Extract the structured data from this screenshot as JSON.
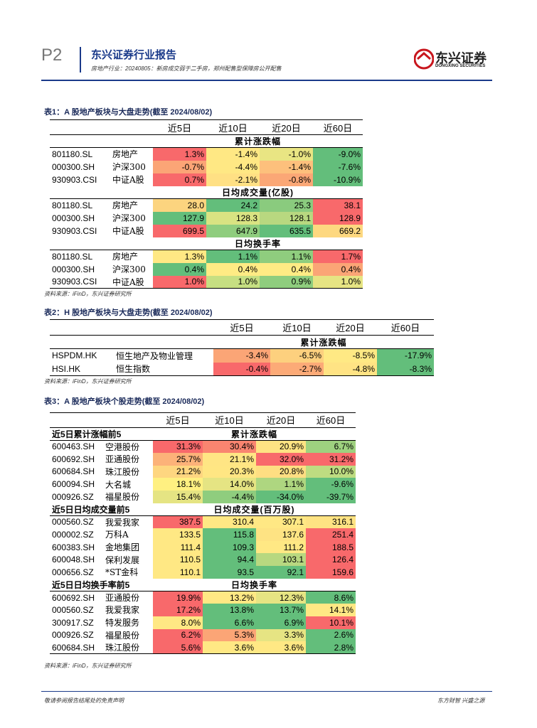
{
  "header": {
    "page": "P2",
    "brand": "东兴证券行业报告",
    "subtitle": "房地产行业：20240805：新房成交弱于二手房，郑州配售型保障房公开配售",
    "logo": "东兴证券",
    "logo_en": "DONGXING SECURITIES"
  },
  "tables": [
    {
      "title": "表1：A 股地产板块与大盘走势(截至 2024/08/02)",
      "columns": [
        "近5日",
        "近10日",
        "近20日",
        "近60日"
      ],
      "sections": [
        {
          "title": "累计涨跌幅",
          "rows": [
            {
              "code": "801180.SL",
              "name": "房地产",
              "values": [
                "1.3%",
                "-1.4%",
                "-1.0%",
                "-9.0%"
              ],
              "colors": [
                "#f8696b",
                "#ffe884",
                "#e9e583",
                "#63be7b"
              ]
            },
            {
              "code": "000300.SH",
              "name": "沪深300",
              "values": [
                "-0.7%",
                "-4.4%",
                "-1.4%",
                "-7.6%"
              ],
              "colors": [
                "#fba576",
                "#ffe884",
                "#fdc07c",
                "#63be7b"
              ]
            },
            {
              "code": "930903.CSI",
              "name": "中证A股",
              "values": [
                "0.7%",
                "-2.1%",
                "-0.8%",
                "-10.9%"
              ],
              "colors": [
                "#f8696b",
                "#ffe084",
                "#fba776",
                "#63be7b"
              ]
            }
          ]
        },
        {
          "title": "日均成交量(亿股)",
          "rows": [
            {
              "code": "801180.SL",
              "name": "房地产",
              "values": [
                "28.0",
                "24.2",
                "25.3",
                "38.1"
              ],
              "colors": [
                "#fcd47f",
                "#63be7b",
                "#8acb7e",
                "#f8696b"
              ]
            },
            {
              "code": "000300.SH",
              "name": "沪深300",
              "values": [
                "127.9",
                "128.3",
                "128.1",
                "128.9"
              ],
              "colors": [
                "#63be7b",
                "#d9e382",
                "#b8d880",
                "#f8696b"
              ]
            },
            {
              "code": "930903.CSI",
              "name": "中证A股",
              "values": [
                "699.5",
                "647.9",
                "635.5",
                "669.2"
              ],
              "colors": [
                "#f8696b",
                "#8fcd7e",
                "#63be7b",
                "#fdd880"
              ]
            }
          ]
        },
        {
          "title": "日均换手率",
          "rows": [
            {
              "code": "801180.SL",
              "name": "房地产",
              "values": [
                "1.3%",
                "1.1%",
                "1.1%",
                "1.7%"
              ],
              "colors": [
                "#ffe884",
                "#63be7b",
                "#8fcd7e",
                "#f8696b"
              ]
            },
            {
              "code": "000300.SH",
              "name": "沪深300",
              "values": [
                "0.4%",
                "0.4%",
                "0.4%",
                "0.4%"
              ],
              "colors": [
                "#63be7b",
                "#ffeb84",
                "#ffeb84",
                "#fba576"
              ]
            },
            {
              "code": "930903.CSI",
              "name": "中证A股",
              "values": [
                "1.0%",
                "1.0%",
                "0.9%",
                "1.0%"
              ],
              "colors": [
                "#f8696b",
                "#c6df82",
                "#8fcd7e",
                "#e6e483"
              ]
            }
          ]
        }
      ],
      "source": "资料来源：iFinD，东兴证券研究所"
    },
    {
      "title": "表2：H 股地产板块与大盘走势(截至 2024/08/02)",
      "columns": [
        "近5日",
        "近10日",
        "近20日",
        "近60日"
      ],
      "sections": [
        {
          "title": "累计涨跌幅",
          "rows": [
            {
              "code": "HSPDM.HK",
              "name": "恒生地产及物业管理",
              "values": [
                "-3.4%",
                "-6.5%",
                "-8.5%",
                "-17.9%"
              ],
              "colors": [
                "#fba576",
                "#fdd07e",
                "#ffe984",
                "#63be7b"
              ]
            },
            {
              "code": "HSI.HK",
              "name": "恒生指数",
              "values": [
                "-0.4%",
                "-2.7%",
                "-4.8%",
                "-8.3%"
              ],
              "colors": [
                "#f8696b",
                "#fcaa77",
                "#ffe384",
                "#63be7b"
              ]
            }
          ]
        }
      ],
      "source": "资料来源：iFinD，东兴证券研究所"
    },
    {
      "title": "表3：A 股地产板块个股走势(截至 2024/08/02)",
      "columns": [
        "近5日",
        "近10日",
        "近20日",
        "近60日"
      ],
      "sections": [
        {
          "label": "近5日累计涨幅前5",
          "title": "累计涨跌幅",
          "rows": [
            {
              "code": "600463.SH",
              "name": "空港股份",
              "values": [
                "31.3%",
                "30.4%",
                "20.9%",
                "6.7%"
              ],
              "colors": [
                "#f8696b",
                "#f98570",
                "#fee383",
                "#9ed17f"
              ]
            },
            {
              "code": "600692.SH",
              "name": "亚通股份",
              "values": [
                "25.7%",
                "21.1%",
                "32.0%",
                "31.2%"
              ],
              "colors": [
                "#fcb279",
                "#ffe584",
                "#f8696b",
                "#f8696b"
              ]
            },
            {
              "code": "600684.SH",
              "name": "珠江股份",
              "values": [
                "21.2%",
                "20.3%",
                "20.8%",
                "10.0%"
              ],
              "colors": [
                "#fed680",
                "#ffe683",
                "#fede82",
                "#bedc81"
              ]
            },
            {
              "code": "600094.SH",
              "name": "大名城",
              "values": [
                "18.1%",
                "14.0%",
                "1.1%",
                "-9.6%"
              ],
              "colors": [
                "#fff081",
                "#e5e483",
                "#aed680",
                "#63be7b"
              ]
            },
            {
              "code": "000926.SZ",
              "name": "福星股份",
              "values": [
                "15.4%",
                "-4.4%",
                "-34.0%",
                "-39.7%"
              ],
              "colors": [
                "#e5e483",
                "#8fcd7e",
                "#63be7b",
                "#63be7b"
              ]
            }
          ]
        },
        {
          "label": "近5日日均成交量前5",
          "title": "日均成交量(百万股)",
          "rows": [
            {
              "code": "000560.SZ",
              "name": "我爱我家",
              "values": [
                "387.5",
                "310.4",
                "307.1",
                "316.1"
              ],
              "colors": [
                "#f8696b",
                "#ffe884",
                "#ffe884",
                "#fee383"
              ]
            },
            {
              "code": "000002.SZ",
              "name": "万科A",
              "values": [
                "133.5",
                "115.8",
                "137.6",
                "251.4"
              ],
              "colors": [
                "#ffe884",
                "#63be7b",
                "#fee383",
                "#f8696b"
              ]
            },
            {
              "code": "600383.SH",
              "name": "金地集团",
              "values": [
                "111.4",
                "109.3",
                "111.2",
                "188.5"
              ],
              "colors": [
                "#ffe884",
                "#63be7b",
                "#ffe884",
                "#f8696b"
              ]
            },
            {
              "code": "600048.SH",
              "name": "保利发展",
              "values": [
                "110.5",
                "94.4",
                "103.1",
                "126.4"
              ],
              "colors": [
                "#ffe884",
                "#63be7b",
                "#b8d880",
                "#f8696b"
              ]
            },
            {
              "code": "000656.SZ",
              "name": "*ST金科",
              "values": [
                "110.1",
                "93.5",
                "92.1",
                "159.6"
              ],
              "colors": [
                "#ffe884",
                "#63be7b",
                "#63be7b",
                "#f8696b"
              ]
            }
          ]
        },
        {
          "label": "近5日日均换手率前5",
          "title": "日均换手率",
          "rows": [
            {
              "code": "600692.SH",
              "name": "亚通股份",
              "values": [
                "19.9%",
                "13.2%",
                "12.3%",
                "8.6%"
              ],
              "colors": [
                "#f8696b",
                "#ffe884",
                "#e6e483",
                "#63be7b"
              ]
            },
            {
              "code": "000560.SZ",
              "name": "我爱我家",
              "values": [
                "17.2%",
                "13.8%",
                "13.7%",
                "14.1%"
              ],
              "colors": [
                "#f8696b",
                "#63be7b",
                "#63be7b",
                "#ffe884"
              ]
            },
            {
              "code": "300917.SZ",
              "name": "特发服务",
              "values": [
                "8.0%",
                "6.6%",
                "6.9%",
                "10.1%"
              ],
              "colors": [
                "#ffe884",
                "#63be7b",
                "#63be7b",
                "#f8696b"
              ]
            },
            {
              "code": "000926.SZ",
              "name": "福星股份",
              "values": [
                "6.2%",
                "5.3%",
                "3.3%",
                "2.6%"
              ],
              "colors": [
                "#f8696b",
                "#fba576",
                "#e6e483",
                "#63be7b"
              ]
            },
            {
              "code": "600684.SH",
              "name": "珠江股份",
              "values": [
                "5.6%",
                "3.6%",
                "3.6%",
                "2.8%"
              ],
              "colors": [
                "#f8696b",
                "#ffe884",
                "#ffe884",
                "#63be7b"
              ]
            }
          ]
        }
      ],
      "source": "资料来源：iFinD，东兴证券研究所"
    }
  ],
  "footer": {
    "left": "敬请参阅报告结尾处的免责声明",
    "right": "东方财智 兴盛之源"
  }
}
